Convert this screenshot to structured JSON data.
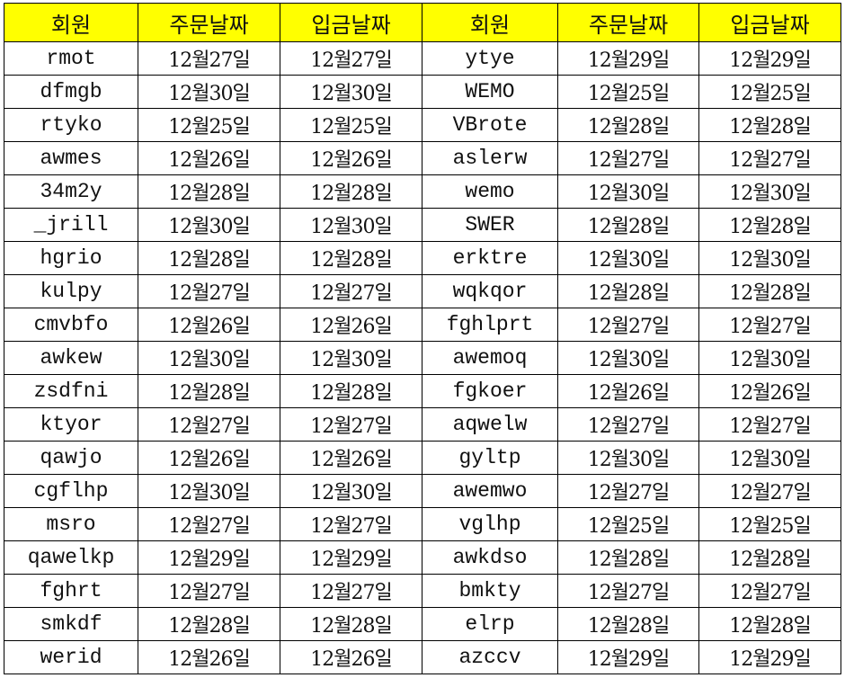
{
  "headers": [
    "회원",
    "주문날짜",
    "입금날짜",
    "회원",
    "주문날짜",
    "입금날짜"
  ],
  "rows": [
    [
      "rmot",
      "12월27일",
      "12월27일",
      "ytye",
      "12월29일",
      "12월29일"
    ],
    [
      "dfmgb",
      "12월30일",
      "12월30일",
      "WEMO",
      "12월25일",
      "12월25일"
    ],
    [
      "rtyko",
      "12월25일",
      "12월25일",
      "VBrote",
      "12월28일",
      "12월28일"
    ],
    [
      "awmes",
      "12월26일",
      "12월26일",
      "aslerw",
      "12월27일",
      "12월27일"
    ],
    [
      "34m2y",
      "12월28일",
      "12월28일",
      "wemo",
      "12월30일",
      "12월30일"
    ],
    [
      "_jrill",
      "12월30일",
      "12월30일",
      "SWER",
      "12월28일",
      "12월28일"
    ],
    [
      "hgrio",
      "12월28일",
      "12월28일",
      "erktre",
      "12월30일",
      "12월30일"
    ],
    [
      "kulpy",
      "12월27일",
      "12월27일",
      "wqkqor",
      "12월28일",
      "12월28일"
    ],
    [
      "cmvbfo",
      "12월26일",
      "12월26일",
      "fghlprt",
      "12월27일",
      "12월27일"
    ],
    [
      "awkew",
      "12월30일",
      "12월30일",
      "awemoq",
      "12월30일",
      "12월30일"
    ],
    [
      "zsdfni",
      "12월28일",
      "12월28일",
      "fgkoer",
      "12월26일",
      "12월26일"
    ],
    [
      "ktyor",
      "12월27일",
      "12월27일",
      "aqwelw",
      "12월27일",
      "12월27일"
    ],
    [
      "qawjo",
      "12월26일",
      "12월26일",
      "gyltp",
      "12월30일",
      "12월30일"
    ],
    [
      "cgflhp",
      "12월30일",
      "12월30일",
      "awemwo",
      "12월27일",
      "12월27일"
    ],
    [
      "msro",
      "12월27일",
      "12월27일",
      "vglhp",
      "12월25일",
      "12월25일"
    ],
    [
      "qawelkp",
      "12월29일",
      "12월29일",
      "awkdso",
      "12월28일",
      "12월28일"
    ],
    [
      "fghrt",
      "12월27일",
      "12월27일",
      "bmkty",
      "12월27일",
      "12월27일"
    ],
    [
      "smkdf",
      "12월28일",
      "12월28일",
      "elrp",
      "12월28일",
      "12월28일"
    ],
    [
      "werid",
      "12월26일",
      "12월26일",
      "azccv",
      "12월29일",
      "12월29일"
    ]
  ],
  "colors": {
    "header_fill": "#ffff00",
    "grid": "#000000"
  }
}
